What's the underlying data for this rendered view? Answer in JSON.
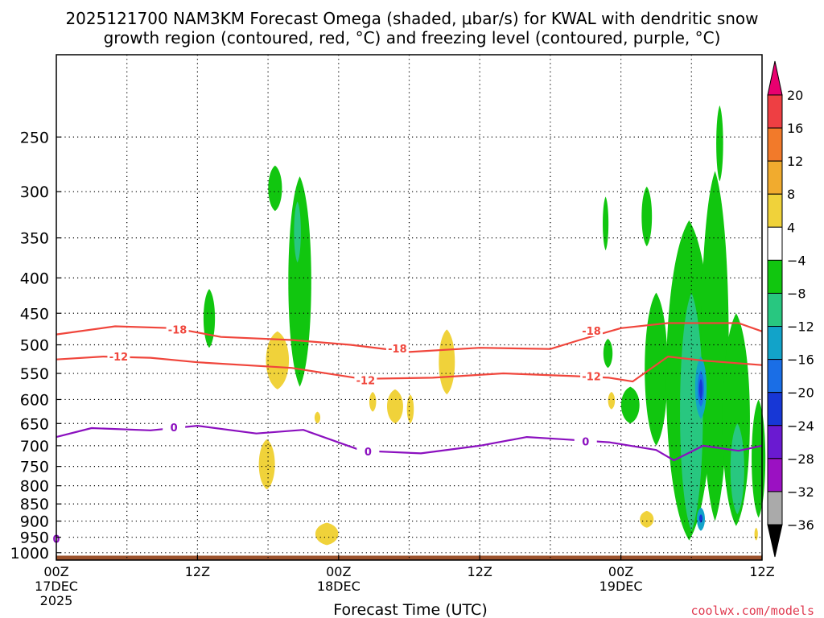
{
  "chart_data": {
    "type": "heatmap",
    "title": "2025121700 NAM3KM Forecast Omega (shaded, μbar/s) for KWAL with dendritic snow",
    "subtitle": "growth region (contoured, red, °C) and freezing level (contoured, purple, °C)",
    "xlabel": "Forecast Time (UTC)",
    "ylabel": "",
    "credit": "coolwx.com/models",
    "x_range_hours": [
      0,
      60
    ],
    "y_range_mb": [
      1025,
      190
    ],
    "y_scale": "log-pressure",
    "grid": true,
    "x_ticks": [
      {
        "hour": 0,
        "line1": "00Z",
        "line2": "17DEC",
        "line3": "2025"
      },
      {
        "hour": 12,
        "line1": "12Z",
        "line2": "",
        "line3": ""
      },
      {
        "hour": 24,
        "line1": "00Z",
        "line2": "18DEC",
        "line3": ""
      },
      {
        "hour": 36,
        "line1": "12Z",
        "line2": "",
        "line3": ""
      },
      {
        "hour": 48,
        "line1": "00Z",
        "line2": "19DEC",
        "line3": ""
      },
      {
        "hour": 60,
        "line1": "12Z",
        "line2": "",
        "line3": ""
      }
    ],
    "y_ticks": [
      250,
      300,
      350,
      400,
      450,
      500,
      550,
      600,
      650,
      700,
      750,
      800,
      850,
      900,
      950,
      1000
    ],
    "colorbar": {
      "units": "μbar/s",
      "labels": [
        "20",
        "16",
        "12",
        "8",
        "4",
        "−4",
        "−8",
        "−12",
        "−16",
        "−20",
        "−24",
        "−28",
        "−32",
        "−36"
      ],
      "colors": [
        "#e8006f",
        "#ee3f43",
        "#f27a2a",
        "#f1ab2e",
        "#f0d23a",
        "#ffffff",
        "#11c60f",
        "#28c780",
        "#12a3c9",
        "#1a6ee6",
        "#1737d6",
        "#6a1ad1",
        "#9b11c2",
        "#aaaaaa",
        "#000000"
      ]
    },
    "terrain_color": "#9c522c",
    "contours": [
      {
        "label": "-18",
        "color": "#f0463c",
        "points": [
          [
            0,
            483
          ],
          [
            5,
            470
          ],
          [
            10,
            473
          ],
          [
            14,
            487
          ],
          [
            20,
            492
          ],
          [
            25,
            500
          ],
          [
            30,
            512
          ],
          [
            36,
            505
          ],
          [
            42,
            507
          ],
          [
            44.5,
            492
          ],
          [
            48,
            473
          ],
          [
            52,
            465
          ],
          [
            58,
            465
          ],
          [
            60,
            478
          ]
        ]
      },
      {
        "label": "-12",
        "color": "#f0463c",
        "points": [
          [
            0,
            525
          ],
          [
            4,
            520
          ],
          [
            8,
            522
          ],
          [
            12,
            530
          ],
          [
            20,
            540
          ],
          [
            26,
            560
          ],
          [
            32,
            558
          ],
          [
            38,
            550
          ],
          [
            44,
            555
          ],
          [
            47,
            558
          ],
          [
            49,
            565
          ],
          [
            52,
            520
          ],
          [
            55,
            527
          ],
          [
            60,
            535
          ]
        ]
      },
      {
        "label": "0",
        "color": "#8b10bf",
        "points": [
          [
            0,
            680
          ],
          [
            3,
            660
          ],
          [
            8,
            665
          ],
          [
            12,
            655
          ],
          [
            17,
            672
          ],
          [
            21,
            664
          ],
          [
            26,
            712
          ],
          [
            31,
            718
          ],
          [
            36,
            700
          ],
          [
            40,
            680
          ],
          [
            43,
            685
          ],
          [
            47,
            692
          ],
          [
            51,
            710
          ],
          [
            52.5,
            735
          ],
          [
            55,
            700
          ],
          [
            58,
            712
          ],
          [
            60,
            700
          ]
        ]
      }
    ],
    "contour_labels": [
      {
        "text": "-18",
        "hour": 10.3,
        "mb": 475,
        "color": "#f0463c"
      },
      {
        "text": "-18",
        "hour": 29,
        "mb": 506,
        "color": "#f0463c"
      },
      {
        "text": "-18",
        "hour": 45.5,
        "mb": 477,
        "color": "#f0463c"
      },
      {
        "text": "-12",
        "hour": 5.3,
        "mb": 520,
        "color": "#f0463c"
      },
      {
        "text": "-12",
        "hour": 26.3,
        "mb": 563,
        "color": "#f0463c"
      },
      {
        "text": "-12",
        "hour": 45.5,
        "mb": 555,
        "color": "#f0463c"
      },
      {
        "text": "0",
        "hour": 10,
        "mb": 658,
        "color": "#8b10bf"
      },
      {
        "text": "0",
        "hour": 26.5,
        "mb": 713,
        "color": "#8b10bf"
      },
      {
        "text": "0",
        "hour": 45,
        "mb": 690,
        "color": "#8b10bf"
      },
      {
        "text": "0",
        "hour": 0,
        "mb": 955,
        "color": "#8b10bf"
      }
    ],
    "omega_features": [
      {
        "kind": "ascent",
        "level": "-4",
        "hour": 18.6,
        "mb_top": 275,
        "mb_bottom": 320,
        "hw": 0.6
      },
      {
        "kind": "ascent",
        "level": "-4",
        "hour": 20.7,
        "mb_top": 285,
        "mb_bottom": 575,
        "hw": 1.0
      },
      {
        "kind": "ascent",
        "level": "-8",
        "hour": 20.5,
        "mb_top": 310,
        "mb_bottom": 380,
        "hw": 0.3
      },
      {
        "kind": "ascent",
        "level": "-4",
        "hour": 13,
        "mb_top": 415,
        "mb_bottom": 505,
        "hw": 0.5
      },
      {
        "kind": "ascent",
        "level": "-4",
        "hour": 46.7,
        "mb_top": 305,
        "mb_bottom": 365,
        "hw": 0.25
      },
      {
        "kind": "ascent",
        "level": "-4",
        "hour": 50.2,
        "mb_top": 295,
        "mb_bottom": 360,
        "hw": 0.45
      },
      {
        "kind": "ascent",
        "level": "-4",
        "hour": 46.9,
        "mb_top": 490,
        "mb_bottom": 540,
        "hw": 0.4
      },
      {
        "kind": "ascent",
        "level": "-4",
        "hour": 48.8,
        "mb_top": 575,
        "mb_bottom": 650,
        "hw": 0.8
      },
      {
        "kind": "ascent",
        "level": "-4",
        "hour": 51,
        "mb_top": 420,
        "mb_bottom": 700,
        "hw": 1.0
      },
      {
        "kind": "ascent",
        "level": "-4",
        "hour": 53.8,
        "mb_top": 330,
        "mb_bottom": 960,
        "hw": 2.0
      },
      {
        "kind": "ascent",
        "level": "-4",
        "hour": 56,
        "mb_top": 280,
        "mb_bottom": 900,
        "hw": 1.2
      },
      {
        "kind": "ascent",
        "level": "-4",
        "hour": 56.4,
        "mb_top": 225,
        "mb_bottom": 290,
        "hw": 0.3
      },
      {
        "kind": "ascent",
        "level": "-4",
        "hour": 57.8,
        "mb_top": 450,
        "mb_bottom": 915,
        "hw": 1.2
      },
      {
        "kind": "ascent",
        "level": "-4",
        "hour": 59.7,
        "mb_top": 600,
        "mb_bottom": 890,
        "hw": 0.6
      },
      {
        "kind": "ascent",
        "level": "-8",
        "hour": 54,
        "mb_top": 420,
        "mb_bottom": 930,
        "hw": 1.0
      },
      {
        "kind": "ascent",
        "level": "-8",
        "hour": 57.9,
        "mb_top": 650,
        "mb_bottom": 880,
        "hw": 0.6
      },
      {
        "kind": "ascent",
        "level": "-12",
        "hour": 54.8,
        "mb_top": 520,
        "mb_bottom": 640,
        "hw": 0.5
      },
      {
        "kind": "ascent",
        "level": "-16",
        "hour": 54.8,
        "mb_top": 545,
        "mb_bottom": 615,
        "hw": 0.28
      },
      {
        "kind": "ascent",
        "level": "-20",
        "hour": 54.8,
        "mb_top": 560,
        "mb_bottom": 600,
        "hw": 0.15
      },
      {
        "kind": "ascent",
        "level": "-12",
        "hour": 54.8,
        "mb_top": 860,
        "mb_bottom": 930,
        "hw": 0.35
      },
      {
        "kind": "ascent",
        "level": "-20",
        "hour": 54.8,
        "mb_top": 880,
        "mb_bottom": 905,
        "hw": 0.15
      },
      {
        "kind": "descent",
        "level": "4",
        "hour": 18.8,
        "mb_top": 478,
        "mb_bottom": 580,
        "hw": 1.0
      },
      {
        "kind": "descent",
        "level": "4",
        "hour": 17.9,
        "mb_top": 685,
        "mb_bottom": 810,
        "hw": 0.7
      },
      {
        "kind": "descent",
        "level": "4",
        "hour": 22.2,
        "mb_top": 625,
        "mb_bottom": 650,
        "hw": 0.25
      },
      {
        "kind": "descent",
        "level": "4",
        "hour": 23,
        "mb_top": 905,
        "mb_bottom": 975,
        "hw": 1.0
      },
      {
        "kind": "descent",
        "level": "4",
        "hour": 28.8,
        "mb_top": 580,
        "mb_bottom": 650,
        "hw": 0.7
      },
      {
        "kind": "descent",
        "level": "4",
        "hour": 26.9,
        "mb_top": 585,
        "mb_bottom": 625,
        "hw": 0.3
      },
      {
        "kind": "descent",
        "level": "4",
        "hour": 30.1,
        "mb_top": 590,
        "mb_bottom": 650,
        "hw": 0.3
      },
      {
        "kind": "descent",
        "level": "4",
        "hour": 33.2,
        "mb_top": 475,
        "mb_bottom": 590,
        "hw": 0.7
      },
      {
        "kind": "descent",
        "level": "4",
        "hour": 47.2,
        "mb_top": 585,
        "mb_bottom": 620,
        "hw": 0.3
      },
      {
        "kind": "descent",
        "level": "4",
        "hour": 53.5,
        "mb_top": 345,
        "mb_bottom": 520,
        "hw": 0.35
      },
      {
        "kind": "descent",
        "level": "8",
        "hour": 53.5,
        "mb_top": 420,
        "mb_bottom": 470,
        "hw": 0.2
      },
      {
        "kind": "descent",
        "level": "4",
        "hour": 54.9,
        "mb_top": 730,
        "mb_bottom": 780,
        "hw": 0.25
      },
      {
        "kind": "descent",
        "level": "4",
        "hour": 50.2,
        "mb_top": 870,
        "mb_bottom": 920,
        "hw": 0.6
      },
      {
        "kind": "descent",
        "level": "4",
        "hour": 59.6,
        "mb_top": 720,
        "mb_bottom": 790,
        "hw": 0.3
      },
      {
        "kind": "descent",
        "level": "4",
        "hour": 59.5,
        "mb_top": 920,
        "mb_bottom": 960,
        "hw": 0.15
      }
    ]
  }
}
